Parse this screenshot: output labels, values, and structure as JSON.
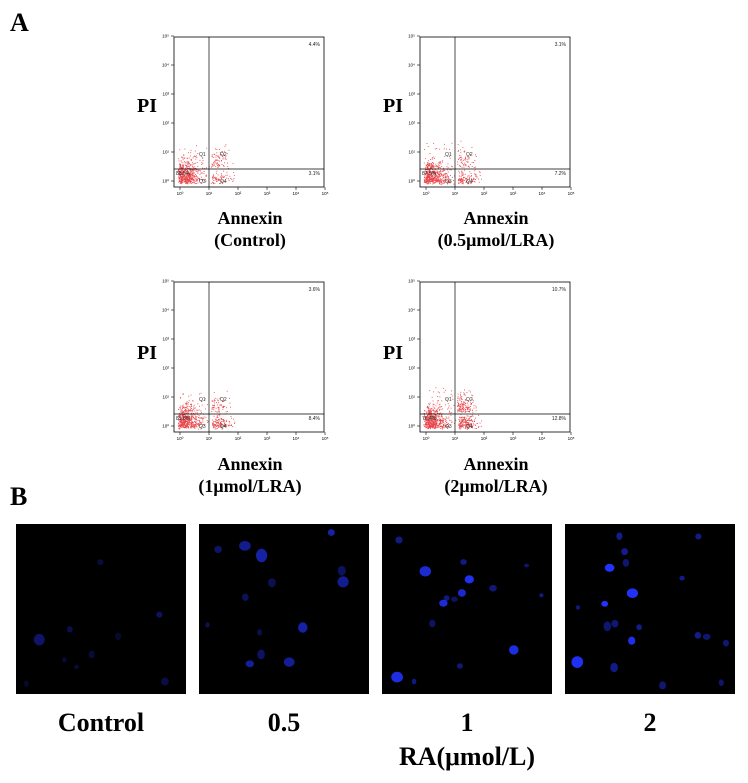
{
  "panel_a_label": "A",
  "panel_b_label": "B",
  "flow_plots": [
    {
      "y_label": "PI",
      "x_label": "Annexin",
      "condition": "(Control)",
      "quadrants": {
        "q1": "Q1",
        "q2": "Q2",
        "q3": "Q3",
        "q4": "Q4"
      },
      "pct_ur": "4.4%",
      "pct_lr": "3.1%",
      "pct_ll": "88.5%",
      "density_ur": 0.15,
      "density_lr": 0.12
    },
    {
      "y_label": "PI",
      "x_label": "Annexin",
      "condition": "(0.5μmol/LRA)",
      "quadrants": {
        "q1": "Q1",
        "q2": "Q2",
        "q3": "Q3",
        "q4": "Q4"
      },
      "pct_ur": "3.1%",
      "pct_lr": "7.2%",
      "pct_ll": "87.5%",
      "density_ur": 0.12,
      "density_lr": 0.2
    },
    {
      "y_label": "PI",
      "x_label": "Annexin",
      "condition": "(1μmol/LRA)",
      "quadrants": {
        "q1": "Q1",
        "q2": "Q2",
        "q3": "Q3",
        "q4": "Q4"
      },
      "pct_ur": "3.6%",
      "pct_lr": "8.4%",
      "pct_ll": "85.6%",
      "density_ur": 0.13,
      "density_lr": 0.22
    },
    {
      "y_label": "PI",
      "x_label": "Annexin",
      "condition": "(2μmol/LRA)",
      "quadrants": {
        "q1": "Q1",
        "q2": "Q2",
        "q3": "Q3",
        "q4": "Q4"
      },
      "pct_ur": "10.7%",
      "pct_lr": "12.8%",
      "pct_ll": "76.4%",
      "density_ur": 0.3,
      "density_lr": 0.3
    }
  ],
  "tick_labels": {
    "x": [
      "10⁰",
      "10¹",
      "10²",
      "10³",
      "10⁴",
      "10⁵"
    ],
    "y": [
      "10⁰",
      "10¹",
      "10²",
      "10³",
      "10⁴",
      "10⁵"
    ]
  },
  "micrographs": [
    {
      "label": "Control",
      "nuclei_count": 10,
      "brightness": 0.35
    },
    {
      "label": "0.5",
      "nuclei_count": 14,
      "brightness": 0.55
    },
    {
      "label": "1",
      "nuclei_count": 16,
      "brightness": 0.8
    },
    {
      "label": "2",
      "nuclei_count": 20,
      "brightness": 0.9
    }
  ],
  "panel_b_axis_label": "RA(μmol/L)",
  "colors": {
    "dots": "#e8454a",
    "nuclei": "#2233ff",
    "background": "#000000"
  }
}
